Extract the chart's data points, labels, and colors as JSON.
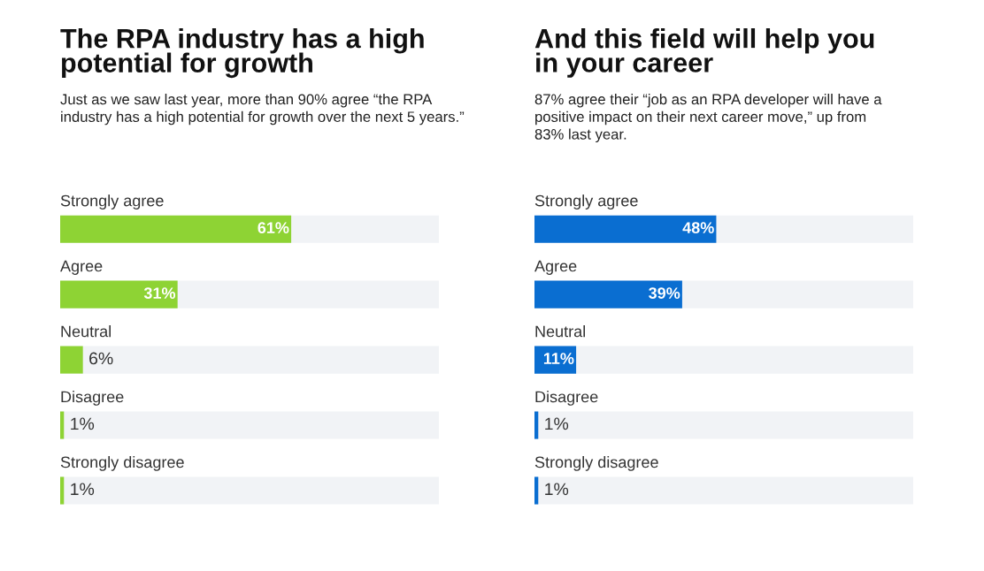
{
  "chart_data": [
    {
      "type": "bar",
      "orientation": "horizontal",
      "title": "The RPA industry has a high\npotential for growth",
      "subtitle": "Just as we saw last year, more than 90% agree “the RPA\nindustry has a high potential for growth over the next 5 years.”",
      "categories": [
        "Strongly agree",
        "Agree",
        "Neutral",
        "Disagree",
        "Strongly disagree"
      ],
      "values": [
        61,
        31,
        6,
        1,
        1
      ],
      "value_labels": [
        "61%",
        "31%",
        "6%",
        "1%",
        "1%"
      ],
      "color": "#8ed334",
      "xlim": [
        0,
        100
      ],
      "tick_labels": "y"
    },
    {
      "type": "bar",
      "orientation": "horizontal",
      "title": "And this field will help you\nin your career",
      "subtitle": "87% agree their “job as an RPA developer will have a\npositive impact on their next career move,” up from\n83% last year.",
      "categories": [
        "Strongly agree",
        "Agree",
        "Neutral",
        "Disagree",
        "Strongly disagree"
      ],
      "values": [
        48,
        39,
        11,
        1,
        1
      ],
      "value_labels": [
        "48%",
        "39%",
        "11%",
        "1%",
        "1%"
      ],
      "color": "#0a6ed1",
      "xlim": [
        0,
        100
      ],
      "tick_labels": "y"
    }
  ]
}
